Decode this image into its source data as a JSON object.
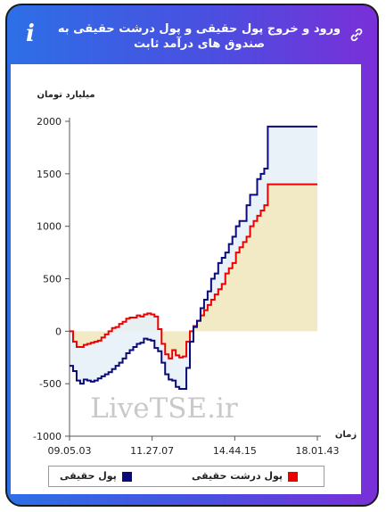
{
  "header": {
    "title": "ورود و خروج پول حقیقی و پول درشت حقیقی به صندوق های درآمد ثابت",
    "info_icon": "info-icon",
    "link_icon": "link-icon"
  },
  "colors": {
    "real_money": "#0a0a7a",
    "big_real_money": "#ee0000",
    "fill_between": "#e6f0f8",
    "fill_zero": "#f2eac4"
  },
  "chart_data": {
    "type": "line",
    "ylabel": "میلیارد تومان",
    "xlabel": "زمان",
    "ylim": [
      -1000,
      2000
    ],
    "yticks": [
      2000,
      1500,
      1000,
      500,
      0,
      -500,
      -1000
    ],
    "xticks": [
      "09.05.03",
      "11.27.07",
      "14.44.15",
      "18.01.43"
    ],
    "grid": false,
    "watermark": "LiveTSE.ir",
    "legend": [
      "پول حقیقی",
      "پول درشت حقیقی"
    ],
    "series": [
      {
        "name": "پول حقیقی",
        "values": [
          -330,
          -380,
          -470,
          -500,
          -460,
          -470,
          -480,
          -470,
          -450,
          -430,
          -410,
          -390,
          -360,
          -330,
          -300,
          -260,
          -210,
          -180,
          -150,
          -120,
          -110,
          -70,
          -80,
          -90,
          -160,
          -190,
          -300,
          -410,
          -460,
          -470,
          -530,
          -550,
          -550,
          -350,
          -100,
          40,
          100,
          220,
          300,
          380,
          500,
          550,
          650,
          700,
          750,
          830,
          900,
          1000,
          1050,
          1050,
          1200,
          1300,
          1300,
          1450,
          1500,
          1550,
          1950,
          1950,
          1950,
          1950,
          1950,
          1950,
          1950,
          1950,
          1950,
          1950,
          1950,
          1950,
          1950,
          1950,
          1950
        ]
      },
      {
        "name": "پول درشت حقیقی",
        "values": [
          0,
          -100,
          -150,
          -150,
          -130,
          -120,
          -110,
          -100,
          -90,
          -60,
          -30,
          0,
          30,
          40,
          70,
          90,
          120,
          130,
          130,
          150,
          140,
          160,
          170,
          160,
          140,
          20,
          -120,
          -220,
          -260,
          -180,
          -230,
          -250,
          -240,
          -100,
          0,
          50,
          100,
          150,
          200,
          250,
          300,
          350,
          400,
          450,
          550,
          600,
          650,
          750,
          800,
          850,
          900,
          1000,
          1050,
          1100,
          1150,
          1200,
          1400,
          1400,
          1400,
          1400,
          1400,
          1400,
          1400,
          1400,
          1400,
          1400,
          1400,
          1400,
          1400,
          1400,
          1400
        ]
      }
    ]
  }
}
